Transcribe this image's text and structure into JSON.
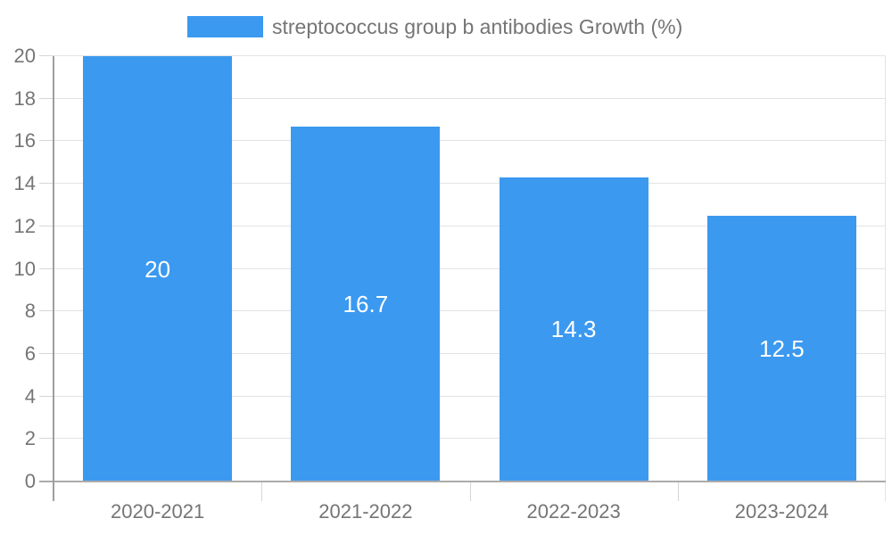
{
  "legend": {
    "label": "streptococcus group b antibodies Growth (%)"
  },
  "colors": {
    "bar": "#3b99f0",
    "grid_line": "#e3e3e3",
    "tick_line": "#d6d6d6",
    "axis_line": "#ababab",
    "yaxis_line": "#9e9e9e",
    "label_text": "#757575",
    "bar_label_text": "#ffffff",
    "background": "#ffffff"
  },
  "chart_data": {
    "type": "bar",
    "title": "streptococcus group b antibodies Growth (%)",
    "categories": [
      "2020-2021",
      "2021-2022",
      "2022-2023",
      "2023-2024"
    ],
    "values": [
      20,
      16.7,
      14.3,
      12.5
    ],
    "bar_labels": [
      "20",
      "16.7",
      "14.3",
      "12.5"
    ],
    "xlabel": "",
    "ylabel": "",
    "ylim": [
      0,
      20
    ],
    "ytick_step": 2,
    "yticks": [
      0,
      2,
      4,
      6,
      8,
      10,
      12,
      14,
      16,
      18,
      20
    ],
    "grid": true,
    "legend_position": "top",
    "bar_fraction": 0.716
  }
}
